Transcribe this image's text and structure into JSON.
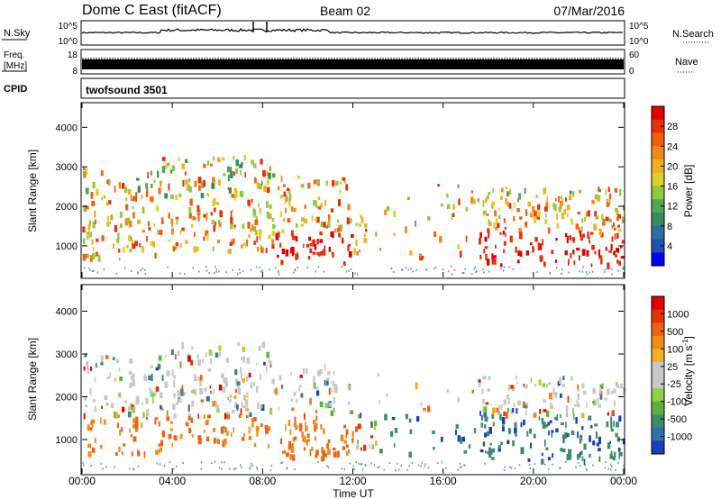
{
  "header": {
    "station": "Dome C East (fitACF)",
    "beam": "Beam 02",
    "date": "07/Mar/2016"
  },
  "strips": {
    "nsky_label": "N.Sky",
    "nsky_ticks": [
      "10^5",
      "10^0"
    ],
    "nsearch_label": "N.Search",
    "freq_label_1": "Freq.",
    "freq_label_2": "[MHz]",
    "freq_ticks": [
      "18",
      "8"
    ],
    "nave_ticks": [
      "60",
      "0"
    ],
    "nave_label": "Nave",
    "cpid_label": "CPID",
    "cpid_value": "twofsound 3501"
  },
  "chart_data": [
    {
      "type": "heatmap",
      "name": "power",
      "ylabel": "Slant Range [km]",
      "ylim": [
        200,
        4600
      ],
      "yticks": [
        1000,
        2000,
        3000,
        4000
      ],
      "colorbar_label": "Power [dB]",
      "colorbar_ticks": [
        "28",
        "24",
        "20",
        "16",
        "12",
        "8",
        "4"
      ],
      "colorbar_colors": [
        "#0000ff",
        "#1f4fb0",
        "#2e6f9e",
        "#3a8a5f",
        "#4fa656",
        "#8fca3c",
        "#d9d22c",
        "#f0b020",
        "#f08a1a",
        "#ef6010",
        "#e83008",
        "#e00000"
      ]
    },
    {
      "type": "heatmap",
      "name": "velocity",
      "ylabel": "Slant Range [km]",
      "ylim": [
        200,
        4600
      ],
      "yticks": [
        1000,
        2000,
        3000,
        4000
      ],
      "xlabel": "Time UT",
      "xticks": [
        "00:00",
        "04:00",
        "08:00",
        "12:00",
        "16:00",
        "20:00",
        "00:00"
      ],
      "xlim_hours": [
        0,
        24
      ],
      "colorbar_label": "Velocity [m s",
      "colorbar_label_sup": "-1",
      "colorbar_label_end": "]",
      "colorbar_ticks": [
        "1000",
        "500",
        "100",
        "25",
        "-25",
        "-100",
        "-500",
        "-1000"
      ],
      "colorbar_colors": [
        "#1a3fb8",
        "#2f6fae",
        "#3e8a6a",
        "#5fae3e",
        "#8ed04a",
        "#c8c8c8",
        "#c8c8c8",
        "#f0b020",
        "#f08a1a",
        "#ef6010",
        "#e83008",
        "#e00000"
      ]
    }
  ]
}
